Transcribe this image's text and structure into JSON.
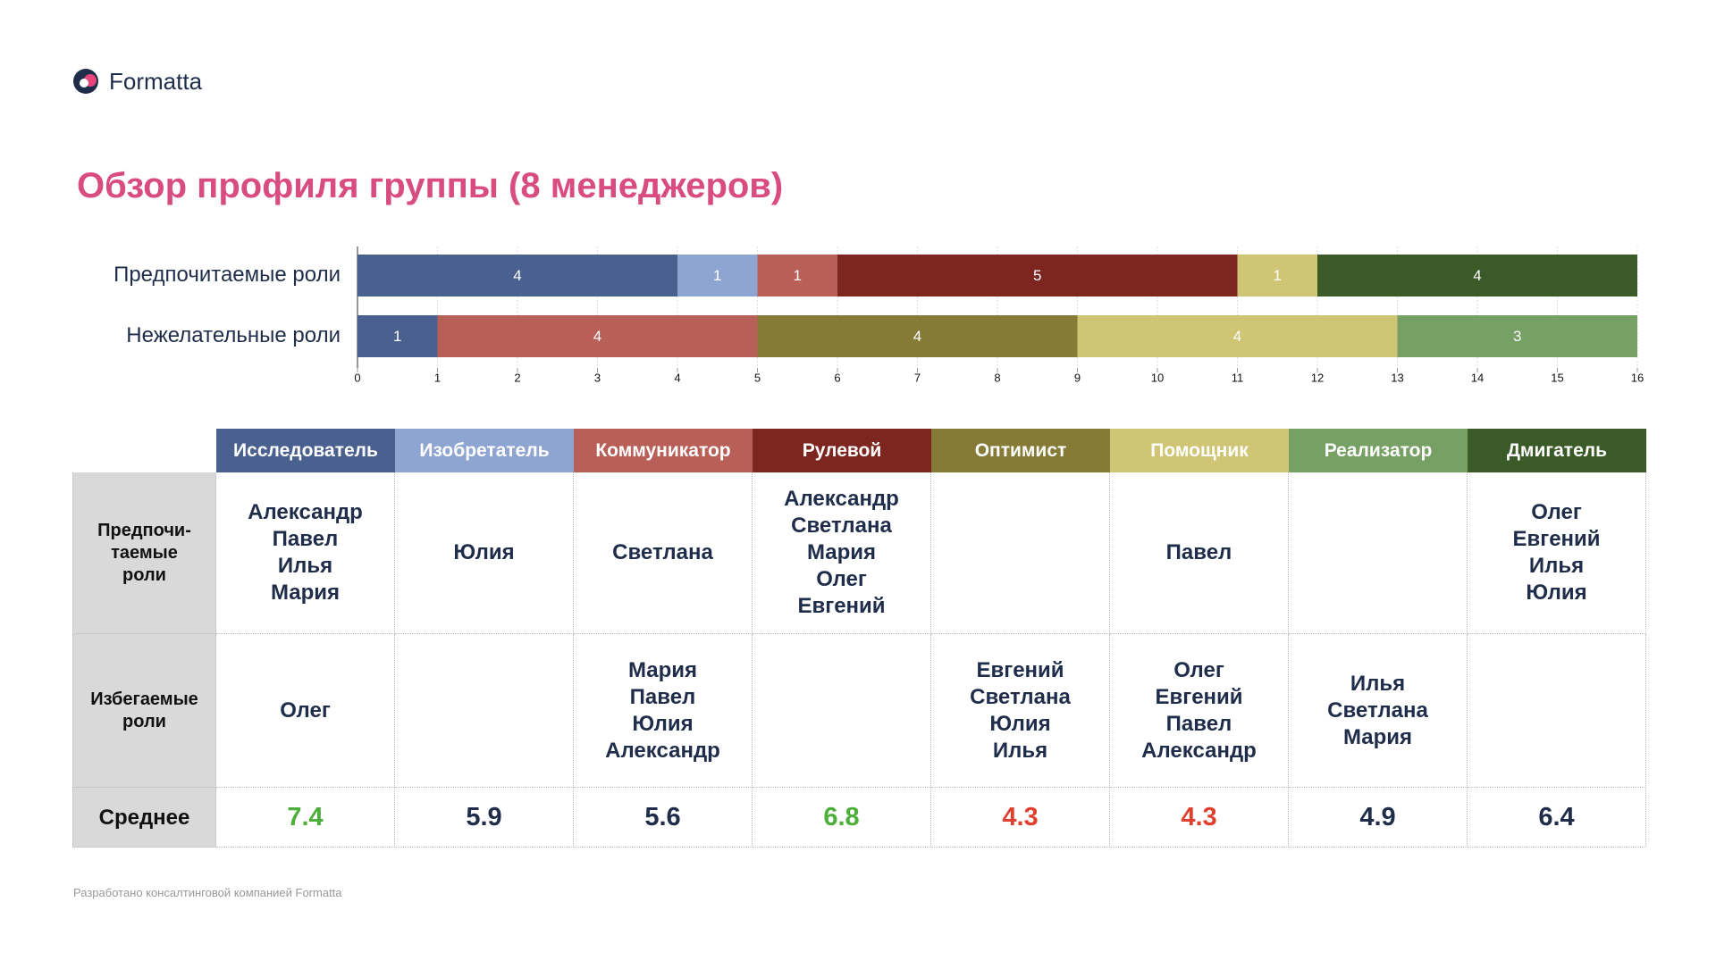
{
  "header": {
    "logo": "Formatta",
    "title": "Обзор профиля группы (8 менеджеров)"
  },
  "chart_data": {
    "type": "stacked-bar-horizontal",
    "categories": [
      "Предпочитаемые роли",
      "Нежелательные роли"
    ],
    "series": [
      {
        "name": "Исследователь",
        "color": "#4a6190",
        "values": [
          4,
          1
        ]
      },
      {
        "name": "Изобретатель",
        "color": "#8ea4d1",
        "values": [
          1,
          null
        ]
      },
      {
        "name": "Коммуникатор",
        "color": "#b85f58",
        "values": [
          1,
          4
        ]
      },
      {
        "name": "Рулевой",
        "color": "#7d2620",
        "values": [
          5,
          null
        ]
      },
      {
        "name": "Оптимист",
        "color": "#857b37",
        "values": [
          null,
          4
        ]
      },
      {
        "name": "Помощник",
        "color": "#cfc575",
        "values": [
          1,
          4
        ]
      },
      {
        "name": "Реализатор",
        "color": "#76a064",
        "values": [
          null,
          3
        ]
      },
      {
        "name": "Дмигатель",
        "color": "#3a5a28",
        "values": [
          4,
          null
        ]
      }
    ],
    "xlim": [
      0,
      16
    ],
    "xticks": [
      0,
      1,
      2,
      3,
      4,
      5,
      6,
      7,
      8,
      9,
      10,
      11,
      12,
      13,
      14,
      15,
      16
    ],
    "grid": true
  },
  "table": {
    "row_headers": [
      [
        "Предпочи-",
        "таемые",
        "роли"
      ],
      [
        "Избегаемые",
        "роли"
      ],
      [
        "Среднее"
      ]
    ],
    "preferred": [
      [
        "Александр",
        "Павел",
        "Илья",
        "Мария"
      ],
      [
        "Юлия"
      ],
      [
        "Светлана"
      ],
      [
        "Александр",
        "Светлана",
        "Мария",
        "Олег",
        "Евгений"
      ],
      [],
      [
        "Павел"
      ],
      [],
      [
        "Олег",
        "Евгений",
        "Илья",
        "Юлия"
      ]
    ],
    "avoided": [
      [
        "Олег"
      ],
      [],
      [
        "Мария",
        "Павел",
        "Юлия",
        "Александр"
      ],
      [],
      [
        "Евгений",
        "Светлана",
        "Юлия",
        "Илья"
      ],
      [
        "Олег",
        "Евгений",
        "Павел",
        "Александр"
      ],
      [
        "Илья",
        "Светлана",
        "Мария"
      ],
      []
    ],
    "average": {
      "values": [
        7.4,
        5.9,
        5.6,
        6.8,
        4.3,
        4.3,
        4.9,
        6.4
      ],
      "colors": [
        "#4caf3a",
        "#1f2d4a",
        "#1f2d4a",
        "#4caf3a",
        "#e0402e",
        "#e0402e",
        "#1f2d4a",
        "#1f2d4a"
      ]
    }
  },
  "footer": "Разработано консалтинговой компанией Formatta"
}
